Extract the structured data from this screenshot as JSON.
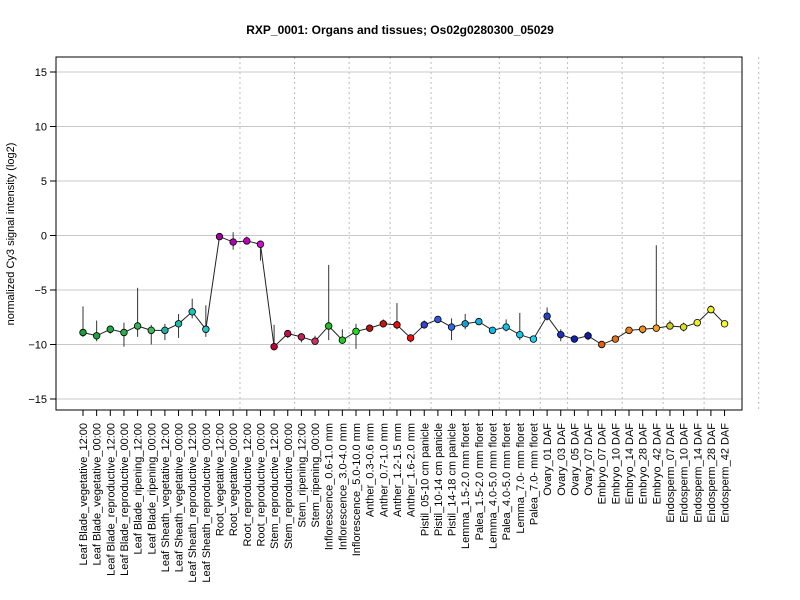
{
  "chart_data": {
    "type": "line",
    "title": "RXP_0001: Organs and tissues; Os02g0280300_05029",
    "xlabel": "",
    "ylabel": "normalized Cy3 signal intensity (log2)",
    "ylim": [
      -15,
      15
    ],
    "yticks": [
      -15,
      -10,
      -5,
      0,
      5,
      10,
      15
    ],
    "grid": {
      "horizontal": true,
      "vertical_dotted": true
    },
    "group_separators_after_index": [
      11,
      15,
      19,
      22,
      25,
      30,
      33,
      35,
      39,
      42,
      45,
      49,
      53
    ],
    "categories": [
      "Leaf Blade_vegetative_12:00",
      "Leaf Blade_vegetative_00:00",
      "Leaf Blade_reproductive_12:00",
      "Leaf Blade_reproductive_00:00",
      "Leaf Blade_ripening_12:00",
      "Leaf Blade_ripening_00:00",
      "Leaf Sheath_vegetative_12:00",
      "Leaf Sheath_vegetative_00:00",
      "Leaf Sheath_reproductive_12:00",
      "Leaf Sheath_reproductive_00:00",
      "Root_vegetative_12:00",
      "Root_vegetative_00:00",
      "Root_reproductive_12:00",
      "Root_reproductive_00:00",
      "Stem_reproductive_12:00",
      "Stem_reproductive_00:00",
      "Stem_ripening_12:00",
      "Stem_ripening_00:00",
      "Inflorescence_0.6-1.0 mm",
      "Inflorescence_3.0-4.0 mm",
      "Inflorescence_5.0-10.0 mm",
      "Anther_0.3-0.6 mm",
      "Anther_0.7-1.0 mm",
      "Anther_1.2-1.5 mm",
      "Anther_1.6-2.0 mm",
      "Pistil_05-10 cm panicle",
      "Pistil_10-14 cm panicle",
      "Pistil_14-18 cm panicle",
      "Lemma_1.5-2.0 mm floret",
      "Palea_1.5-2.0 mm floret",
      "Lemma_4.0-5.0 mm floret",
      "Palea_4.0-5.0 mm floret",
      "Lemma_7.0- mm floret",
      "Palea_7.0- mm floret",
      "Ovary_01 DAF",
      "Ovary_03 DAF",
      "Ovary_05 DAF",
      "Ovary_07 DAF",
      "Embryo_07 DAF",
      "Embryo_10 DAF",
      "Embryo_14 DAF",
      "Embryo_28 DAF",
      "Embryo_42 DAF",
      "Endosperm_07 DAF",
      "Endosperm_10 DAF",
      "Endosperm_14 DAF",
      "Endosperm_28 DAF",
      "Endosperm_42 DAF"
    ],
    "series": [
      {
        "values": [
          -8.9,
          -9.2,
          -8.6,
          -8.9,
          -8.3,
          -8.7,
          -8.7,
          -8.1,
          -7.0,
          -8.6,
          -0.1,
          -0.6,
          -0.5,
          -0.8,
          -10.2,
          -9.0,
          -9.3,
          -9.7,
          -8.3,
          -9.6,
          -8.8,
          -8.5,
          -8.1,
          -8.2,
          -9.4,
          -8.2,
          -7.7,
          -8.4,
          -8.1,
          -7.9,
          -8.7,
          -8.4,
          -9.1,
          -9.5,
          -7.4,
          -9.1,
          -9.5,
          -9.2,
          -10.0,
          -9.5,
          -8.7,
          -8.6,
          -8.5,
          -8.3,
          -8.4,
          -8.0,
          -6.8,
          -8.1
        ],
        "err_low": [
          -9.3,
          -9.7,
          -9.0,
          -10.2,
          -9.3,
          -10.0,
          -9.6,
          -9.4,
          -7.6,
          -9.3,
          -0.3,
          -1.3,
          -0.8,
          -2.3,
          -10.4,
          -9.4,
          -9.8,
          -10.0,
          -9.6,
          -9.9,
          -10.4,
          -8.8,
          -8.4,
          -8.6,
          -9.8,
          -8.5,
          -8.0,
          -9.6,
          -8.6,
          -8.2,
          -8.9,
          -8.8,
          -9.6,
          -9.7,
          -7.8,
          -9.7,
          -9.8,
          -9.6,
          -10.2,
          -9.8,
          -8.9,
          -9.0,
          -8.8,
          -8.6,
          -8.8,
          -8.3,
          -7.1,
          -8.3
        ],
        "err_high": [
          -6.5,
          -7.8,
          -8.3,
          -8.0,
          -4.8,
          -8.2,
          -8.1,
          -7.2,
          -5.8,
          -6.4,
          0.1,
          0.3,
          -0.1,
          -0.5,
          -8.2,
          -8.8,
          -9.0,
          -9.2,
          -2.7,
          -8.6,
          -8.1,
          -8.2,
          -7.7,
          -6.2,
          -9.1,
          -7.8,
          -7.4,
          -7.6,
          -7.2,
          -7.6,
          -8.4,
          -7.7,
          -7.1,
          -9.2,
          -6.6,
          -8.6,
          -9.2,
          -8.8,
          -9.8,
          -9.2,
          -8.5,
          -8.3,
          -0.9,
          -7.8,
          -8.0,
          -7.7,
          -6.4,
          -7.9
        ]
      }
    ],
    "point_colors": [
      "#1a9e3a",
      "#1aa33f",
      "#21aa45",
      "#28b04b",
      "#2fb652",
      "#36bc59",
      "#22b0a0",
      "#22b8ac",
      "#22c0b8",
      "#22c8c4",
      "#a000a0",
      "#b000b0",
      "#c000c0",
      "#cc10cc",
      "#c0003c",
      "#c4104a",
      "#c82058",
      "#cc3066",
      "#22bb22",
      "#22cc22",
      "#22dd22",
      "#bb1111",
      "#cc1111",
      "#dd1111",
      "#ee1111",
      "#3344cc",
      "#3355dd",
      "#3366ee",
      "#11a0d0",
      "#11b0dd",
      "#11bbe0",
      "#11c0e6",
      "#11c8ee",
      "#22d0f4",
      "#2244cc",
      "#1a33bb",
      "#1122aa",
      "#0e1fa0",
      "#e06010",
      "#e67015",
      "#ec801a",
      "#f0901f",
      "#f4a024",
      "#cccc22",
      "#dddd22",
      "#eeee22",
      "#f2f222",
      "#f8f833"
    ]
  }
}
